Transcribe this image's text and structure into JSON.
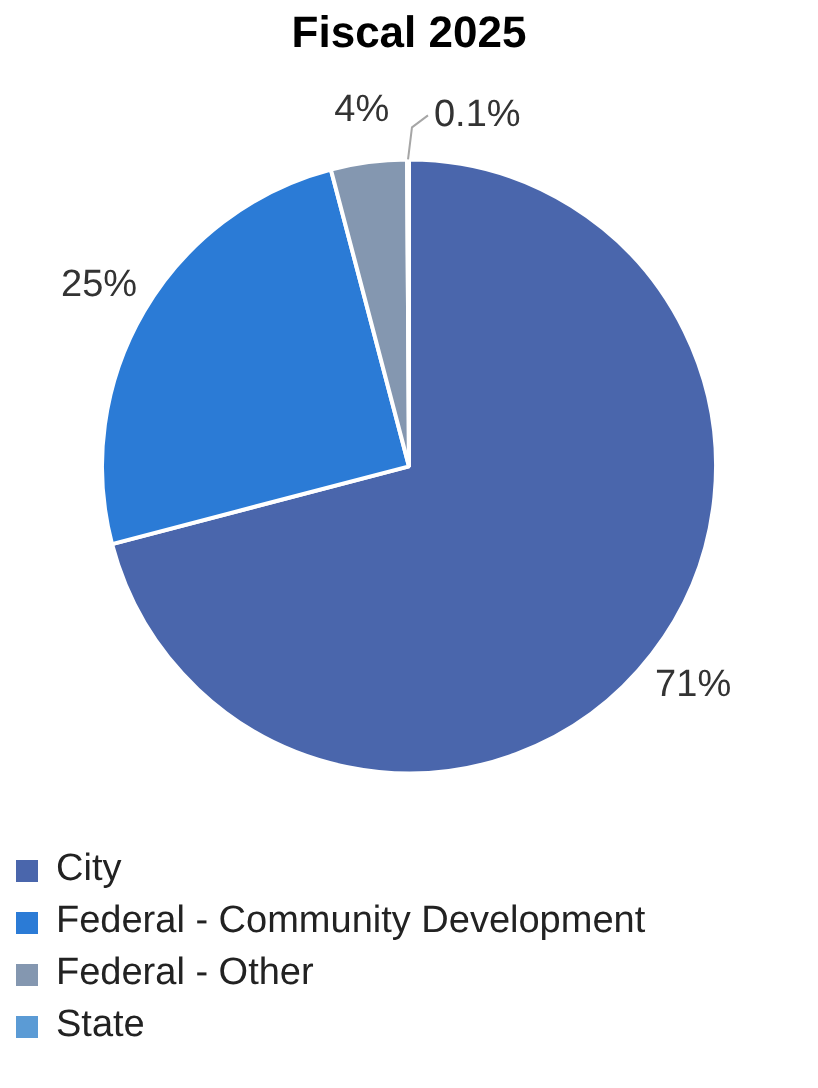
{
  "chart_data": {
    "type": "pie",
    "title": "Fiscal 2025",
    "categories": [
      "City",
      "Federal - Community Development",
      "Federal - Other",
      "State"
    ],
    "values": [
      71,
      25,
      4,
      0.1
    ],
    "value_labels": [
      "71%",
      "25%",
      "4%",
      "0.1%"
    ],
    "colors": [
      "#4a66ac",
      "#2b7bd6",
      "#8497b0",
      "#5b9bd5"
    ],
    "legend": "bottom"
  }
}
